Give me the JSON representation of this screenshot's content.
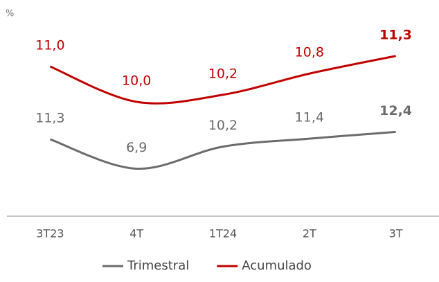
{
  "chart_data": {
    "type": "line",
    "y_label": "%",
    "categories": [
      "3T23",
      "4T",
      "1T24",
      "2T",
      "3T"
    ],
    "series": [
      {
        "name": "Trimestral",
        "color": "#6b6b6b",
        "values": [
          11.3,
          6.9,
          10.2,
          11.4,
          12.4
        ],
        "value_labels": [
          "11,3",
          "6,9",
          "10,2",
          "11,4",
          "12,4"
        ]
      },
      {
        "name": "Acumulado",
        "color": "#c00000",
        "axis": "y2",
        "values": [
          11.0,
          10.0,
          10.2,
          10.8,
          11.3
        ],
        "value_labels": [
          "11,0",
          "10,0",
          "10,2",
          "10,8",
          "11,3"
        ]
      }
    ],
    "ylim": [
      0,
      28
    ],
    "y2lim": [
      6.8,
      12.1
    ],
    "legend": "bottom"
  }
}
